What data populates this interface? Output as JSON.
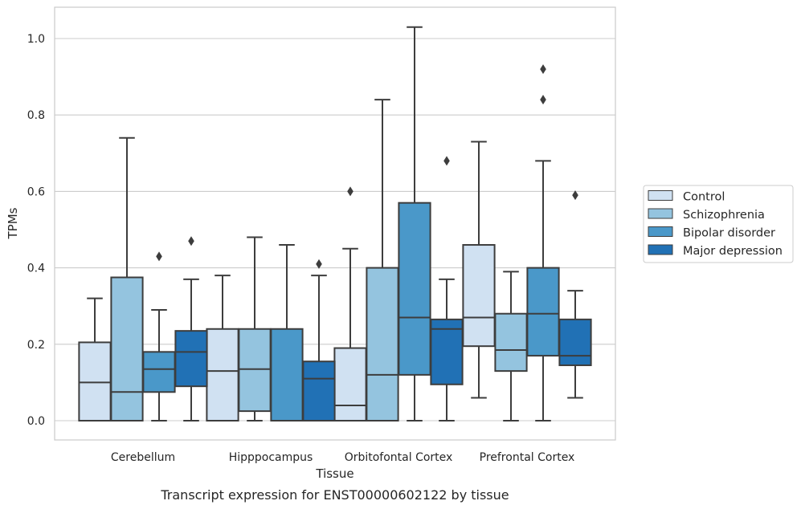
{
  "chart_data": {
    "type": "box",
    "xlabel": "Tissue",
    "ylabel": "TPMs",
    "caption": "Transcript expression for ENST00000602122 by tissue",
    "ylim": [
      -0.05,
      1.08
    ],
    "yticks": [
      "0.0",
      "0.2",
      "0.4",
      "0.6",
      "0.8",
      "1.0"
    ],
    "grid": "horizontal",
    "legend_position": "right",
    "categories": [
      "Cerebellum",
      "Hipppocampus",
      "Orbitofontal Cortex",
      "Prefrontal Cortex"
    ],
    "series": [
      {
        "name": "Control",
        "color": "#d0e1f2",
        "boxes": [
          {
            "whislo": 0.0,
            "q1": 0.0,
            "med": 0.1,
            "q3": 0.205,
            "whishi": 0.32,
            "fliers": []
          },
          {
            "whislo": 0.0,
            "q1": 0.0,
            "med": 0.13,
            "q3": 0.24,
            "whishi": 0.38,
            "fliers": []
          },
          {
            "whislo": 0.0,
            "q1": 0.0,
            "med": 0.04,
            "q3": 0.19,
            "whishi": 0.45,
            "fliers": [
              0.6
            ]
          },
          {
            "whislo": 0.06,
            "q1": 0.195,
            "med": 0.27,
            "q3": 0.46,
            "whishi": 0.73,
            "fliers": []
          }
        ]
      },
      {
        "name": "Schizophrenia",
        "color": "#94c4df",
        "boxes": [
          {
            "whislo": 0.0,
            "q1": 0.0,
            "med": 0.075,
            "q3": 0.375,
            "whishi": 0.74,
            "fliers": []
          },
          {
            "whislo": 0.0,
            "q1": 0.025,
            "med": 0.135,
            "q3": 0.24,
            "whishi": 0.48,
            "fliers": []
          },
          {
            "whislo": 0.0,
            "q1": 0.0,
            "med": 0.12,
            "q3": 0.4,
            "whishi": 0.84,
            "fliers": []
          },
          {
            "whislo": 0.0,
            "q1": 0.13,
            "med": 0.185,
            "q3": 0.28,
            "whishi": 0.39,
            "fliers": []
          }
        ]
      },
      {
        "name": "Bipolar disorder",
        "color": "#4a98c9",
        "boxes": [
          {
            "whislo": 0.0,
            "q1": 0.075,
            "med": 0.135,
            "q3": 0.18,
            "whishi": 0.29,
            "fliers": [
              0.43
            ]
          },
          {
            "whislo": 0.0,
            "q1": 0.0,
            "med": 0.0,
            "q3": 0.24,
            "whishi": 0.46,
            "fliers": []
          },
          {
            "whislo": 0.0,
            "q1": 0.12,
            "med": 0.27,
            "q3": 0.57,
            "whishi": 1.03,
            "fliers": []
          },
          {
            "whislo": 0.0,
            "q1": 0.17,
            "med": 0.28,
            "q3": 0.4,
            "whishi": 0.68,
            "fliers": [
              0.84,
              0.92
            ]
          }
        ]
      },
      {
        "name": "Major depression",
        "color": "#2171b5",
        "boxes": [
          {
            "whislo": 0.0,
            "q1": 0.09,
            "med": 0.18,
            "q3": 0.235,
            "whishi": 0.37,
            "fliers": [
              0.47
            ]
          },
          {
            "whislo": 0.0,
            "q1": 0.0,
            "med": 0.11,
            "q3": 0.155,
            "whishi": 0.38,
            "fliers": [
              0.41
            ]
          },
          {
            "whislo": 0.0,
            "q1": 0.095,
            "med": 0.24,
            "q3": 0.265,
            "whishi": 0.37,
            "fliers": [
              0.68
            ]
          },
          {
            "whislo": 0.06,
            "q1": 0.145,
            "med": 0.17,
            "q3": 0.265,
            "whishi": 0.34,
            "fliers": [
              0.59
            ]
          }
        ]
      }
    ]
  }
}
